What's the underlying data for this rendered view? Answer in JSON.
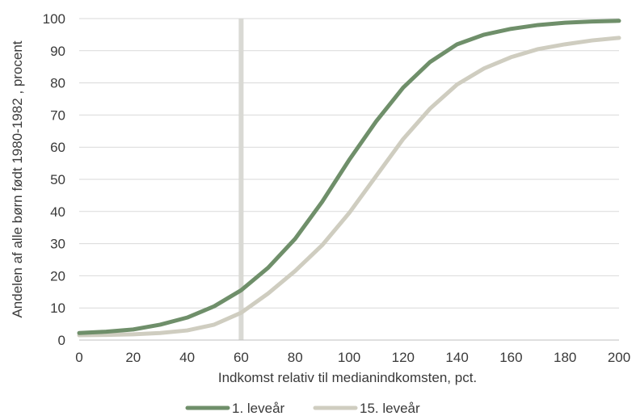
{
  "chart_data": {
    "type": "line",
    "xlabel": "Indkomst relativ til medianindkomsten, pct.",
    "ylabel": "Andelen af alle børn født 1980-1982 , procent",
    "xlim": [
      0,
      200
    ],
    "ylim": [
      0,
      100
    ],
    "x_ticks": [
      0,
      20,
      40,
      60,
      80,
      100,
      120,
      140,
      160,
      180,
      200
    ],
    "y_ticks": [
      0,
      10,
      20,
      30,
      40,
      50,
      60,
      70,
      80,
      90,
      100
    ],
    "grid": "horizontal",
    "legend_position": "bottom",
    "reference_line_x": 60,
    "reference_line_color": "#d9d9d4",
    "x": [
      0,
      10,
      20,
      30,
      40,
      50,
      60,
      70,
      80,
      90,
      100,
      110,
      120,
      130,
      140,
      150,
      160,
      170,
      180,
      190,
      200
    ],
    "series": [
      {
        "name": "1. leveår",
        "color": "#6f8f6a",
        "values": [
          2.2,
          2.6,
          3.3,
          4.8,
          7.0,
          10.5,
          15.5,
          22.5,
          31.5,
          43.0,
          56.0,
          68.0,
          78.5,
          86.5,
          92.0,
          95.0,
          96.8,
          98.0,
          98.7,
          99.1,
          99.3
        ]
      },
      {
        "name": "15. leveår",
        "color": "#cfcdc0",
        "values": [
          1.5,
          1.6,
          1.8,
          2.2,
          3.0,
          4.8,
          8.5,
          14.5,
          21.5,
          29.5,
          39.5,
          51.0,
          62.5,
          72.0,
          79.5,
          84.5,
          88.0,
          90.5,
          92.0,
          93.2,
          94.0
        ]
      }
    ]
  }
}
